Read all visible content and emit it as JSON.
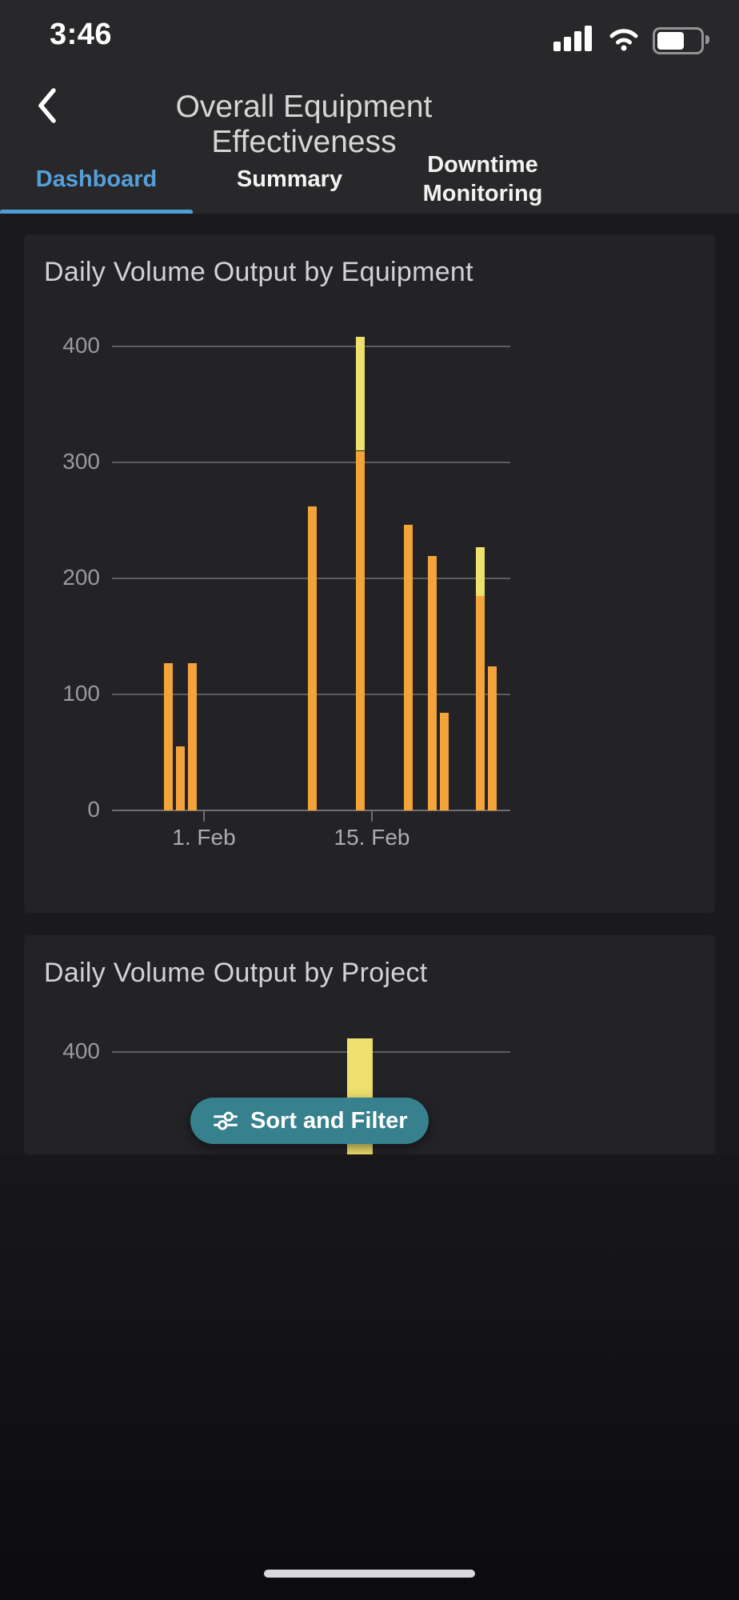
{
  "status_bar": {
    "time": "3:46"
  },
  "header": {
    "title": "Overall Equipment Effectiveness"
  },
  "tabs": [
    {
      "label": "Dashboard",
      "active": true
    },
    {
      "label": "Summary",
      "active": false
    },
    {
      "label": "Downtime Monitoring",
      "active": false
    }
  ],
  "chart_data": [
    {
      "type": "bar",
      "stacked": true,
      "title": "Daily Volume Output by Equipment",
      "ylim": [
        0,
        400
      ],
      "y_ticks": [
        0,
        100,
        200,
        300,
        400
      ],
      "x_ticks": [
        {
          "label": "1. Feb",
          "day": 1
        },
        {
          "label": "15. Feb",
          "day": 15
        }
      ],
      "grid": true,
      "legend": "none",
      "series": [
        {
          "name": "primary",
          "color": "#f2a43a"
        },
        {
          "name": "secondary",
          "color": "#eee06d"
        }
      ],
      "bars": [
        {
          "date": "Jan 29",
          "day": -2,
          "primary": 127,
          "secondary": 0
        },
        {
          "date": "Jan 30",
          "day": -1,
          "primary": 55,
          "secondary": 0
        },
        {
          "date": "Jan 31",
          "day": 0,
          "primary": 127,
          "secondary": 0
        },
        {
          "date": "Feb 10",
          "day": 10,
          "primary": 262,
          "secondary": 0
        },
        {
          "date": "Feb 14",
          "day": 14,
          "primary": 310,
          "secondary": 98
        },
        {
          "date": "Feb 18",
          "day": 18,
          "primary": 246,
          "secondary": 0
        },
        {
          "date": "Feb 20",
          "day": 20,
          "primary": 219,
          "secondary": 0
        },
        {
          "date": "Feb 21",
          "day": 21,
          "primary": 84,
          "secondary": 0
        },
        {
          "date": "Feb 24",
          "day": 24,
          "primary": 185,
          "secondary": 42
        },
        {
          "date": "Feb 25",
          "day": 25,
          "primary": 124,
          "secondary": 0
        }
      ]
    },
    {
      "type": "bar",
      "title": "Daily Volume Output by Project",
      "visible_y_ticks": [
        400
      ],
      "grid": true,
      "bars": [
        {
          "date": "Feb 14",
          "day": 14,
          "value": 412,
          "color": "#eee06d",
          "partially_visible": true
        }
      ]
    }
  ],
  "sort_filter_button": {
    "label": "Sort and Filter",
    "icon": "tune-sliders-icon"
  },
  "colors": {
    "accent_blue": "#55a0d8",
    "teal_button": "#37808e",
    "bar_orange": "#f2a43a",
    "bar_yellow": "#eee06d",
    "header_bg": "#28282b",
    "card_bg": "#232327",
    "page_bg": "#1a1a1c"
  }
}
